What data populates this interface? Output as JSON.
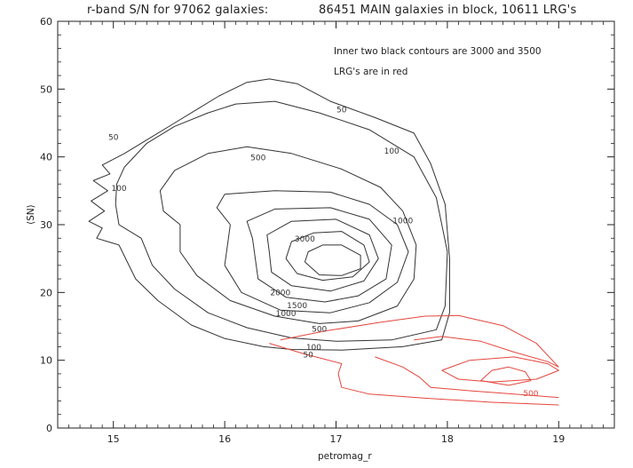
{
  "chart_data": {
    "type": "contour",
    "title_left": "r-band S/N for 97062 galaxies:",
    "title_right": "86451 MAIN galaxies in block, 10611 LRG's",
    "xlabel": "petromag_r",
    "ylabel": "⟨SN⟩",
    "xlim": [
      14.5,
      19.5
    ],
    "ylim": [
      0,
      60
    ],
    "xticks": [
      15,
      16,
      17,
      18,
      19
    ],
    "yticks": [
      0,
      10,
      20,
      30,
      40,
      50,
      60
    ],
    "notes": [
      "Inner two black contours are 3000 and 3500",
      "LRG's are in red"
    ],
    "colors": {
      "main": "#333333",
      "lrg": "#e4463d",
      "axis": "#222222"
    },
    "main_contours": [
      {
        "level": 50,
        "label": "50",
        "points": [
          [
            15.05,
            27
          ],
          [
            14.85,
            28
          ],
          [
            14.9,
            29.5
          ],
          [
            14.78,
            30.5
          ],
          [
            14.92,
            32
          ],
          [
            14.8,
            33.5
          ],
          [
            14.95,
            35
          ],
          [
            14.82,
            36.5
          ],
          [
            14.97,
            37.5
          ],
          [
            14.9,
            38.8
          ],
          [
            15.1,
            40.5
          ],
          [
            15.3,
            42.5
          ],
          [
            15.55,
            45
          ],
          [
            15.75,
            47
          ],
          [
            15.95,
            49
          ],
          [
            16.2,
            51
          ],
          [
            16.4,
            51.5
          ],
          [
            16.65,
            50.8
          ],
          [
            16.95,
            48.2
          ],
          [
            17.35,
            45.8
          ],
          [
            17.7,
            43.5
          ],
          [
            17.85,
            39
          ],
          [
            17.98,
            33
          ],
          [
            18.02,
            25
          ],
          [
            18.02,
            17
          ],
          [
            17.95,
            13
          ],
          [
            17.6,
            12
          ],
          [
            17.05,
            11.5
          ],
          [
            16.6,
            11.6
          ],
          [
            16.35,
            12
          ],
          [
            16,
            13.2
          ],
          [
            15.7,
            15.2
          ],
          [
            15.4,
            18.8
          ],
          [
            15.2,
            22
          ],
          [
            15.05,
            27
          ]
        ]
      },
      {
        "level": 100,
        "label": "100",
        "points": [
          [
            15.25,
            28
          ],
          [
            15.05,
            30
          ],
          [
            15.02,
            33
          ],
          [
            15.03,
            36
          ],
          [
            15.1,
            38.5
          ],
          [
            15.3,
            42
          ],
          [
            15.55,
            44.5
          ],
          [
            15.85,
            46.5
          ],
          [
            16.1,
            47.8
          ],
          [
            16.45,
            48.2
          ],
          [
            16.85,
            46.5
          ],
          [
            17.3,
            44
          ],
          [
            17.7,
            40
          ],
          [
            17.9,
            34
          ],
          [
            18,
            26
          ],
          [
            17.98,
            18
          ],
          [
            17.9,
            14.5
          ],
          [
            17.5,
            13
          ],
          [
            17,
            12.8
          ],
          [
            16.6,
            13.3
          ],
          [
            16.2,
            14.8
          ],
          [
            15.85,
            17
          ],
          [
            15.55,
            20.5
          ],
          [
            15.35,
            24
          ],
          [
            15.25,
            28
          ]
        ]
      },
      {
        "level": 500,
        "label": "500",
        "points": [
          [
            15.6,
            30
          ],
          [
            15.45,
            32
          ],
          [
            15.42,
            35
          ],
          [
            15.55,
            38
          ],
          [
            15.85,
            40.5
          ],
          [
            16.2,
            41.5
          ],
          [
            16.6,
            40.5
          ],
          [
            17.05,
            38.2
          ],
          [
            17.4,
            35.5
          ],
          [
            17.6,
            32
          ],
          [
            17.72,
            27
          ],
          [
            17.7,
            22
          ],
          [
            17.55,
            18
          ],
          [
            17.2,
            15.8
          ],
          [
            16.85,
            15.4
          ],
          [
            16.45,
            16.5
          ],
          [
            16.05,
            18.8
          ],
          [
            15.75,
            22.5
          ],
          [
            15.6,
            26
          ],
          [
            15.6,
            30
          ]
        ]
      },
      {
        "level": 1000,
        "label": "1000",
        "points": [
          [
            16.05,
            30
          ],
          [
            15.93,
            32.5
          ],
          [
            16,
            34.5
          ],
          [
            16.45,
            35
          ],
          [
            16.95,
            34.8
          ],
          [
            17.3,
            33
          ],
          [
            17.55,
            30
          ],
          [
            17.65,
            26
          ],
          [
            17.55,
            21.5
          ],
          [
            17.3,
            18.5
          ],
          [
            16.95,
            17
          ],
          [
            16.5,
            17.4
          ],
          [
            16.15,
            20
          ],
          [
            16,
            24
          ],
          [
            16.05,
            30
          ]
        ]
      },
      {
        "level": 1500,
        "label": "1500",
        "points": [
          [
            16.25,
            28
          ],
          [
            16.2,
            30.5
          ],
          [
            16.45,
            32.3
          ],
          [
            16.95,
            32.5
          ],
          [
            17.3,
            30.8
          ],
          [
            17.5,
            27
          ],
          [
            17.45,
            22
          ],
          [
            17.2,
            19.5
          ],
          [
            16.9,
            18.6
          ],
          [
            16.55,
            19.3
          ],
          [
            16.3,
            22
          ],
          [
            16.25,
            28
          ]
        ]
      },
      {
        "level": 2000,
        "label": "2000",
        "points": [
          [
            16.4,
            26
          ],
          [
            16.38,
            28.5
          ],
          [
            16.6,
            30.5
          ],
          [
            17,
            30.8
          ],
          [
            17.3,
            28.5
          ],
          [
            17.38,
            25
          ],
          [
            17.25,
            21.7
          ],
          [
            16.95,
            20.2
          ],
          [
            16.6,
            21
          ],
          [
            16.42,
            23
          ],
          [
            16.4,
            26
          ]
        ]
      },
      {
        "level": 3000,
        "label": "3000",
        "points": [
          [
            16.55,
            25
          ],
          [
            16.6,
            27.5
          ],
          [
            16.8,
            28.8
          ],
          [
            17.05,
            29
          ],
          [
            17.25,
            27
          ],
          [
            17.3,
            24.5
          ],
          [
            17.15,
            22.3
          ],
          [
            16.88,
            21.8
          ],
          [
            16.65,
            22.8
          ],
          [
            16.55,
            25
          ]
        ]
      },
      {
        "level": 3500,
        "label": "",
        "points": [
          [
            16.72,
            24.5
          ],
          [
            16.75,
            26
          ],
          [
            16.88,
            27
          ],
          [
            17.05,
            27
          ],
          [
            17.22,
            25.5
          ],
          [
            17.22,
            23.5
          ],
          [
            17.05,
            22.5
          ],
          [
            16.85,
            22.6
          ],
          [
            16.72,
            24.5
          ]
        ]
      }
    ],
    "lrg_contours": [
      {
        "level": 10,
        "label": "",
        "points": [
          [
            16.4,
            12.5
          ],
          [
            16.7,
            11
          ],
          [
            17.05,
            9.5
          ],
          [
            17.02,
            8
          ],
          [
            17.05,
            6
          ],
          [
            17.3,
            5
          ],
          [
            17.8,
            4.4
          ],
          [
            18.4,
            3.8
          ],
          [
            19,
            3.4
          ]
        ]
      },
      {
        "level": 50,
        "label": "",
        "points": [
          [
            16.5,
            13
          ],
          [
            16.9,
            14.3
          ],
          [
            17.4,
            15.6
          ],
          [
            17.8,
            16.5
          ],
          [
            18.1,
            16.6
          ],
          [
            18.5,
            15.1
          ],
          [
            18.8,
            12.5
          ],
          [
            19,
            9
          ]
        ]
      },
      {
        "level": 100,
        "label": "",
        "points": [
          [
            17.35,
            10.5
          ],
          [
            17.6,
            9
          ],
          [
            17.75,
            7.5
          ],
          [
            17.85,
            6
          ],
          [
            18.2,
            5.5
          ],
          [
            18.6,
            5
          ],
          [
            19,
            4.5
          ]
        ]
      },
      {
        "level": 500,
        "label": "500",
        "points": [
          [
            17.7,
            13
          ],
          [
            17.95,
            13.5
          ],
          [
            18.3,
            12.8
          ],
          [
            18.6,
            11.2
          ],
          [
            18.9,
            9.8
          ],
          [
            19,
            9
          ]
        ]
      },
      {
        "level": 1000,
        "label": "",
        "points": [
          [
            17.95,
            8.5
          ],
          [
            18.2,
            10
          ],
          [
            18.6,
            10.5
          ],
          [
            18.9,
            9.5
          ],
          [
            19,
            8.5
          ],
          [
            18.8,
            7.2
          ],
          [
            18.4,
            6.8
          ],
          [
            18.1,
            7.2
          ],
          [
            17.95,
            8.5
          ]
        ]
      },
      {
        "level": 2000,
        "label": "",
        "points": [
          [
            18.3,
            7
          ],
          [
            18.4,
            8.5
          ],
          [
            18.55,
            9
          ],
          [
            18.7,
            8.3
          ],
          [
            18.75,
            7
          ],
          [
            18.55,
            6.3
          ],
          [
            18.3,
            7
          ]
        ]
      }
    ]
  },
  "main_labels": [
    {
      "text": "50",
      "at": [
        17.05,
        46.6
      ]
    },
    {
      "text": "50",
      "at": [
        15.0,
        42.5
      ]
    },
    {
      "text": "100",
      "at": [
        17.5,
        40.5
      ]
    },
    {
      "text": "100",
      "at": [
        15.05,
        35
      ]
    },
    {
      "text": "500",
      "at": [
        16.3,
        39.5
      ]
    },
    {
      "text": "1000",
      "at": [
        17.6,
        30.2
      ]
    },
    {
      "text": "3000",
      "at": [
        16.72,
        27.5
      ]
    },
    {
      "text": "2000",
      "at": [
        16.5,
        19.6
      ]
    },
    {
      "text": "1500",
      "at": [
        16.65,
        17.7
      ]
    },
    {
      "text": "1000",
      "at": [
        16.55,
        16.5
      ]
    },
    {
      "text": "500",
      "at": [
        16.85,
        14.2
      ]
    },
    {
      "text": "100",
      "at": [
        16.8,
        11.5
      ]
    },
    {
      "text": "50",
      "at": [
        16.75,
        10.4
      ]
    }
  ],
  "lrg_labels": [
    {
      "text": "500",
      "at": [
        18.75,
        4.7
      ]
    }
  ]
}
